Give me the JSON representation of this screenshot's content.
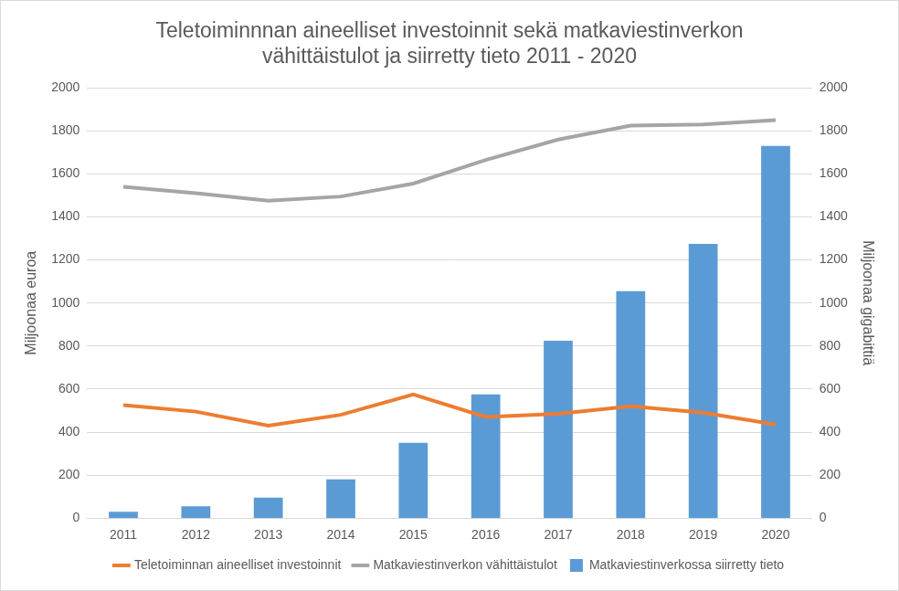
{
  "chart_data": {
    "type": "bar",
    "title": [
      "Teletoiminnnan aineelliset investoinnit sekä matkaviestinverkon",
      "vähittäistulot ja siirretty tieto 2011 - 2020"
    ],
    "ylabel": "Miljoonaa euroa",
    "y2label": "Miljoonaa gigabittiä",
    "categories": [
      "2011",
      "2012",
      "2013",
      "2014",
      "2015",
      "2016",
      "2017",
      "2018",
      "2019",
      "2020"
    ],
    "series": [
      {
        "name": "Matkaviestinverkossa siirretty tieto",
        "type": "bar",
        "axis": "y2",
        "color": "#5b9bd5",
        "values": [
          30,
          55,
          95,
          180,
          350,
          575,
          825,
          1055,
          1275,
          1730
        ]
      },
      {
        "name": "Teletoiminnan aineelliset investoinnit",
        "type": "line",
        "color": "#ed7d31",
        "values": [
          525,
          495,
          430,
          480,
          575,
          470,
          485,
          520,
          490,
          435
        ]
      },
      {
        "name": "Matkaviestinverkon vähittäistulot",
        "type": "line",
        "color": "#a5a5a5",
        "values": [
          1540,
          1510,
          1475,
          1495,
          1555,
          1665,
          1760,
          1825,
          1830,
          1850
        ]
      }
    ],
    "ylim": [
      0,
      2000
    ],
    "yticks": [
      0,
      200,
      400,
      600,
      800,
      1000,
      1200,
      1400,
      1600,
      1800,
      2000
    ],
    "y2lim": [
      0,
      2000
    ],
    "y2ticks": [
      0,
      200,
      400,
      600,
      800,
      1000,
      1200,
      1400,
      1600,
      1800,
      2000
    ],
    "grid": true,
    "legend": "bottom"
  }
}
